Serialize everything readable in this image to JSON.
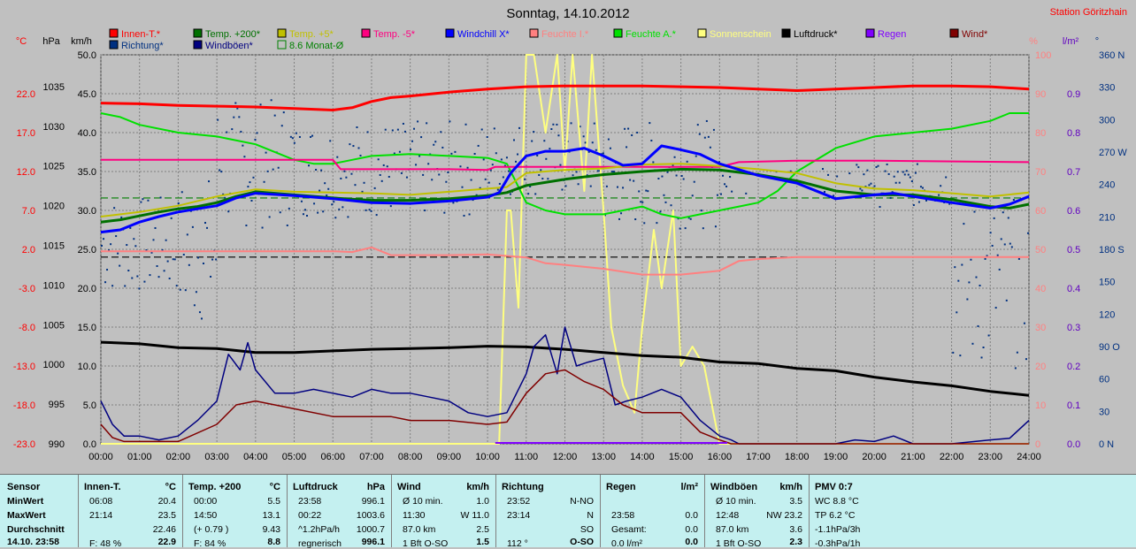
{
  "title": "Sonntag, 14.10.2012",
  "station": "Station Göritzhain",
  "colors": {
    "innen": "#ff0000",
    "temp200": "#007000",
    "temp5": "#c0c000",
    "temp_5": "#ff0080",
    "windchill": "#0000ff",
    "feuchte_i": "#ff8080",
    "feuchte_a": "#00e000",
    "sonne": "#ffff80",
    "luftdruck": "#000000",
    "regen": "#8000ff",
    "wind": "#800000",
    "richtung": "#003080",
    "windboen": "#000080",
    "monat": "#008000",
    "plot_bg": "#c0c0c0",
    "grid": "#808080",
    "panel": "#c4f0f0"
  },
  "legend": [
    {
      "label": "Innen-T.*",
      "color": "#ff0000"
    },
    {
      "label": "Temp. +200*",
      "color": "#007000"
    },
    {
      "label": "Temp. +5*",
      "color": "#c0c000"
    },
    {
      "label": "Temp. -5*",
      "color": "#ff0080"
    },
    {
      "label": "Windchill X*",
      "color": "#0000ff"
    },
    {
      "label": "Feuchte I.*",
      "color": "#ff8080"
    },
    {
      "label": "Feuchte A.*",
      "color": "#00e000"
    },
    {
      "label": "Sonnenschein",
      "color": "#ffff80"
    },
    {
      "label": "Luftdruck*",
      "color": "#000000"
    },
    {
      "label": "Regen",
      "color": "#8000ff"
    },
    {
      "label": "Wind*",
      "color": "#800000"
    },
    {
      "label": "Richtung*",
      "color": "#003080"
    },
    {
      "label": "Windböen*",
      "color": "#000080"
    },
    {
      "label": "8.6 Monat-Ø",
      "color": "#008000",
      "hollow": true
    }
  ],
  "chart_data": {
    "type": "line",
    "title": "Sonntag, 14.10.2012",
    "x_range": [
      0,
      24
    ],
    "x_ticks": [
      "00:00",
      "01:00",
      "02:00",
      "03:00",
      "04:00",
      "05:00",
      "06:00",
      "07:00",
      "08:00",
      "09:00",
      "10:00",
      "11:00",
      "12:00",
      "13:00",
      "14:00",
      "15:00",
      "16:00",
      "17:00",
      "18:00",
      "19:00",
      "20:00",
      "21:00",
      "22:00",
      "23:00",
      "24:00"
    ],
    "axes": {
      "temp": {
        "label": "°C",
        "range": [
          -23,
          27
        ],
        "ticks": [
          "22.0",
          "17.0",
          "12.0",
          "7.0",
          "2.0",
          "-3.0",
          "-8.0",
          "-13.0",
          "-18.0",
          "-23.0"
        ],
        "tick_values": [
          22,
          17,
          12,
          7,
          2,
          -3,
          -8,
          -13,
          -18,
          -23
        ]
      },
      "pressure": {
        "label": "hPa",
        "range": [
          990,
          1039
        ],
        "ticks": [
          "1035",
          "1030",
          "1025",
          "1020",
          "1015",
          "1010",
          "1005",
          "1000",
          "995",
          "990"
        ],
        "tick_values": [
          1035,
          1030,
          1025,
          1020,
          1015,
          1010,
          1005,
          1000,
          995,
          990
        ]
      },
      "wind": {
        "label": "km/h",
        "range": [
          0,
          50
        ],
        "ticks": [
          "50.0",
          "45.0",
          "40.0",
          "35.0",
          "30.0",
          "25.0",
          "20.0",
          "15.0",
          "10.0",
          "5.0",
          "0.0"
        ],
        "tick_values": [
          50,
          45,
          40,
          35,
          30,
          25,
          20,
          15,
          10,
          5,
          0
        ]
      },
      "humidity": {
        "label": "%",
        "range": [
          0,
          100
        ],
        "ticks": [
          "100",
          "90",
          "80",
          "70",
          "60",
          "50",
          "40",
          "30",
          "20",
          "10",
          "0"
        ],
        "tick_values": [
          100,
          90,
          80,
          70,
          60,
          50,
          40,
          30,
          20,
          10,
          0
        ]
      },
      "rain": {
        "label": "l/m²",
        "range": [
          0,
          1.0
        ],
        "ticks": [
          "0.9",
          "0.8",
          "0.7",
          "0.6",
          "0.5",
          "0.4",
          "0.3",
          "0.2",
          "0.1",
          "0.0"
        ],
        "tick_values": [
          0.9,
          0.8,
          0.7,
          0.6,
          0.5,
          0.4,
          0.3,
          0.2,
          0.1,
          0.0
        ]
      },
      "direction": {
        "label": "°",
        "range": [
          0,
          360
        ],
        "ticks": [
          "360 N",
          "330",
          "300",
          "270 W",
          "240",
          "210",
          "180 S",
          "150",
          "120",
          "90 O",
          "60",
          "30",
          "0 N"
        ],
        "tick_values": [
          360,
          330,
          300,
          270,
          240,
          210,
          180,
          150,
          120,
          90,
          60,
          30,
          0
        ]
      }
    },
    "grid": true,
    "reference_lines": [
      {
        "name": "8.6 Monat-Ø",
        "axis": "temp",
        "value": 8.6,
        "style": "dashed",
        "color": "#008000"
      },
      {
        "axis": "temp",
        "value": 1.0,
        "style": "dashed",
        "color": "#000000"
      }
    ],
    "series": [
      {
        "name": "Innen-T.*",
        "axis": "temp",
        "color": "#ff0000",
        "width": 3,
        "x": [
          0,
          1,
          2,
          3,
          4,
          5,
          6,
          6.5,
          7,
          7.5,
          8,
          9,
          10,
          11,
          12,
          13,
          14,
          15,
          16,
          17,
          18,
          19,
          20,
          21,
          22,
          23,
          24
        ],
        "y": [
          20.8,
          20.7,
          20.5,
          20.4,
          20.3,
          20.1,
          19.9,
          20.2,
          21.0,
          21.5,
          21.7,
          22.2,
          22.6,
          22.9,
          23.0,
          23.0,
          23.0,
          22.9,
          22.8,
          22.6,
          22.4,
          22.6,
          22.8,
          23.0,
          23.0,
          22.9,
          22.6
        ]
      },
      {
        "name": "Temp. +200*",
        "axis": "temp",
        "color": "#007000",
        "width": 3,
        "x": [
          0,
          0.5,
          1,
          1.5,
          2,
          2.5,
          3,
          3.5,
          4,
          5,
          6,
          7,
          8,
          9,
          10,
          10.5,
          11,
          12,
          13,
          14,
          15,
          16,
          17,
          18,
          19,
          20,
          21,
          22,
          23,
          23.5,
          24
        ],
        "y": [
          5.5,
          5.8,
          6.3,
          6.8,
          7.2,
          7.5,
          8.0,
          8.8,
          9.4,
          9.0,
          8.6,
          8.3,
          8.3,
          8.5,
          8.9,
          9.3,
          10.2,
          11.0,
          11.6,
          12.0,
          12.3,
          12.2,
          11.6,
          10.8,
          9.5,
          9.0,
          9.0,
          8.4,
          7.5,
          7.3,
          7.8
        ]
      },
      {
        "name": "Temp. +5*",
        "axis": "temp",
        "color": "#c0c000",
        "width": 2,
        "x": [
          0,
          1,
          2,
          3,
          4,
          5,
          6,
          7,
          8,
          9,
          10,
          10.5,
          11,
          12,
          13,
          14,
          15,
          16,
          17,
          18,
          19,
          20,
          21,
          22,
          23,
          24
        ],
        "y": [
          6.2,
          6.8,
          7.6,
          8.8,
          9.7,
          9.4,
          9.3,
          9.2,
          9.0,
          9.4,
          9.8,
          10.0,
          11.8,
          12.2,
          12.4,
          12.9,
          13.0,
          12.7,
          12.3,
          11.8,
          10.5,
          9.8,
          9.6,
          9.2,
          8.8,
          9.3
        ]
      },
      {
        "name": "Temp. -5*",
        "axis": "temp",
        "color": "#ff0080",
        "width": 2,
        "x": [
          0,
          6,
          6.2,
          9,
          10,
          10.2,
          15,
          16,
          16.5,
          18,
          20,
          24
        ],
        "y": [
          13.5,
          13.5,
          12.3,
          12.3,
          12.2,
          12.6,
          12.6,
          12.6,
          13.2,
          13.4,
          13.4,
          13.2
        ]
      },
      {
        "name": "Windchill X*",
        "axis": "temp",
        "color": "#0000ff",
        "width": 3,
        "x": [
          0,
          0.5,
          1,
          1.5,
          2,
          2.5,
          3,
          3.5,
          4,
          5,
          6,
          7,
          8,
          9,
          10,
          10.3,
          10.6,
          11,
          11.5,
          12,
          12.5,
          13,
          13.5,
          14,
          14.5,
          15,
          15.5,
          16,
          17,
          18,
          19,
          20,
          20.5,
          21,
          22,
          23,
          23.5,
          24
        ],
        "y": [
          4.2,
          4.5,
          5.5,
          6.2,
          6.8,
          7.2,
          7.6,
          8.6,
          9.2,
          8.9,
          8.5,
          8.0,
          7.9,
          8.2,
          8.7,
          9.3,
          11.8,
          14.0,
          14.6,
          14.6,
          15.0,
          14.0,
          12.8,
          13.0,
          15.3,
          14.8,
          14.2,
          13.0,
          11.5,
          10.5,
          8.5,
          9.0,
          9.2,
          8.8,
          8.0,
          7.3,
          7.8,
          8.8
        ]
      },
      {
        "name": "Feuchte A.*",
        "axis": "humidity",
        "color": "#00e000",
        "width": 2,
        "x": [
          0,
          0.5,
          1,
          2,
          3,
          4,
          5,
          5.5,
          6,
          6.5,
          7,
          8,
          9,
          10,
          10.5,
          11,
          11.5,
          12,
          13,
          14,
          14.5,
          15,
          15.5,
          16,
          16.5,
          17,
          17.5,
          18,
          19,
          20,
          21,
          22,
          23,
          23.5,
          24
        ],
        "y": [
          85,
          84,
          82,
          80,
          79,
          77,
          73,
          72,
          72,
          73,
          74,
          74.5,
          74,
          73.5,
          72,
          62,
          60,
          59,
          59,
          61,
          59,
          58,
          59,
          60,
          61,
          62,
          65,
          70,
          76,
          79,
          80,
          81,
          83,
          85,
          85
        ]
      },
      {
        "name": "Feuchte I.*",
        "axis": "humidity",
        "color": "#ff8080",
        "width": 2,
        "x": [
          0,
          6,
          6.5,
          7,
          7.5,
          9,
          10,
          11,
          11.5,
          12,
          13,
          14,
          15,
          16,
          16.5,
          17,
          18,
          24
        ],
        "y": [
          49.5,
          49.5,
          49.3,
          50.5,
          48.5,
          48.5,
          48.7,
          47.9,
          46.4,
          46.0,
          45.0,
          43.5,
          43.5,
          44.5,
          47.0,
          47.5,
          48.0,
          48.0
        ]
      },
      {
        "name": "Sonnenschein",
        "axis": "humidity",
        "color": "#ffff80",
        "width": 2,
        "x": [
          0,
          10.3,
          10.5,
          10.6,
          10.8,
          11.0,
          11.2,
          11.5,
          11.8,
          12.0,
          12.2,
          12.5,
          12.7,
          13.0,
          13.2,
          13.5,
          13.8,
          14.0,
          14.3,
          14.5,
          14.8,
          15.0,
          15.3,
          15.6,
          16.0,
          16.2,
          24
        ],
        "y": [
          0,
          0,
          60,
          60,
          35,
          100,
          100,
          80,
          100,
          70,
          100,
          65,
          100,
          60,
          30,
          15,
          8,
          30,
          55,
          40,
          60,
          20,
          25,
          20,
          0,
          0,
          0
        ]
      },
      {
        "name": "Luftdruck*",
        "axis": "pressure",
        "color": "#000000",
        "width": 3,
        "x": [
          0,
          1,
          2,
          3,
          4,
          5,
          6,
          7,
          8,
          9,
          10,
          11,
          12,
          13,
          14,
          15,
          16,
          17,
          18,
          19,
          20,
          21,
          22,
          23,
          24
        ],
        "y": [
          1002.8,
          1002.6,
          1002.1,
          1002.0,
          1001.5,
          1001.5,
          1001.7,
          1001.9,
          1002.0,
          1002.1,
          1002.3,
          1002.2,
          1001.9,
          1001.5,
          1001.1,
          1000.9,
          1000.3,
          1000.1,
          999.5,
          999.2,
          998.4,
          997.8,
          997.3,
          996.6,
          996.1
        ]
      },
      {
        "name": "Windböen*",
        "axis": "wind",
        "color": "#000080",
        "width": 1.5,
        "x": [
          0,
          0.3,
          0.6,
          1,
          1.5,
          2,
          2.5,
          3,
          3.3,
          3.6,
          3.8,
          4,
          4.5,
          5,
          5.5,
          6,
          6.5,
          7,
          7.5,
          8,
          8.5,
          9,
          9.5,
          10,
          10.5,
          11,
          11.2,
          11.5,
          11.8,
          12,
          12.3,
          12.6,
          13,
          13.3,
          13.6,
          14,
          14.5,
          15,
          15.5,
          16,
          16.3,
          16.5,
          17,
          19,
          19.5,
          20,
          20.5,
          21,
          22,
          23,
          23.5,
          24
        ],
        "y": [
          5.5,
          2.5,
          1.0,
          1.0,
          0.5,
          1.0,
          3.0,
          5.5,
          11.5,
          9.5,
          13.0,
          9.5,
          6.5,
          6.5,
          7.0,
          6.5,
          6.0,
          7.0,
          6.5,
          6.5,
          6.0,
          5.5,
          4.0,
          3.5,
          4.0,
          9.0,
          12.5,
          14.0,
          9.0,
          15.0,
          10.0,
          10.5,
          11.0,
          5.0,
          5.5,
          6.0,
          7.0,
          6.0,
          3.0,
          1.0,
          0.5,
          0,
          0,
          0,
          0.5,
          0.3,
          1.0,
          0,
          0,
          0.5,
          0.7,
          3.0
        ]
      },
      {
        "name": "Wind*",
        "axis": "wind",
        "color": "#800000",
        "width": 1.5,
        "x": [
          0,
          0.3,
          0.6,
          1,
          2,
          3,
          3.5,
          4,
          5,
          6,
          7,
          7.5,
          8,
          9,
          10,
          10.5,
          11,
          11.5,
          12,
          12.5,
          13,
          13.5,
          14,
          14.5,
          15,
          15.5,
          16,
          16.3,
          16.5,
          24
        ],
        "y": [
          2.5,
          0.8,
          0.3,
          0.3,
          0.3,
          2.5,
          5.0,
          5.5,
          4.5,
          3.5,
          3.5,
          3.5,
          3.0,
          3.0,
          2.5,
          2.8,
          6.5,
          9.0,
          9.5,
          8.0,
          7.0,
          5.0,
          4.0,
          4.0,
          4.0,
          1.5,
          0.5,
          0,
          0,
          0
        ]
      }
    ],
    "scatter_series": {
      "name": "Richtung*",
      "axis": "direction",
      "color": "#003080"
    }
  },
  "panel": {
    "sensor": {
      "header": "Sensor",
      "rows": [
        "MinWert",
        "MaxWert",
        "Durchschnitt",
        "14.10. 23:58"
      ]
    },
    "innen": {
      "header": "Innen-T.",
      "unit": "°C",
      "rows": [
        [
          "06:08",
          "20.4"
        ],
        [
          "21:14",
          "23.5"
        ],
        [
          "",
          "22.46"
        ],
        [
          "F: 48 %",
          "22.9"
        ]
      ]
    },
    "temp200": {
      "header": "Temp. +200",
      "unit": "°C",
      "rows": [
        [
          "00:00",
          "5.5"
        ],
        [
          "14:50",
          "13.1"
        ],
        [
          "(+ 0.79 )",
          "9.43"
        ],
        [
          "F: 84 %",
          "8.8"
        ]
      ]
    },
    "luftdruck": {
      "header": "Luftdruck",
      "unit": "hPa",
      "rows": [
        [
          "23:58",
          "996.1"
        ],
        [
          "00:22",
          "1003.6"
        ],
        [
          "^1.2hPa/h",
          "1000.7"
        ],
        [
          "regnerisch",
          "996.1"
        ]
      ]
    },
    "wind": {
      "header": "Wind",
      "unit": "km/h",
      "rows": [
        [
          "Ø 10 min.",
          "1.0"
        ],
        [
          "11:30",
          "W 11.0"
        ],
        [
          "87.0 km",
          "2.5"
        ],
        [
          "1 Bft O-SO",
          "1.5"
        ]
      ]
    },
    "richtung": {
      "header": "Richtung",
      "rows": [
        [
          "23:52",
          "N-NO"
        ],
        [
          "23:14",
          "N"
        ],
        [
          "",
          "SO"
        ],
        [
          "112 °",
          "O-SO"
        ]
      ]
    },
    "regen": {
      "header": "Regen",
      "unit": "l/m²",
      "rows": [
        [
          "",
          ""
        ],
        [
          "23:58",
          "0.0"
        ],
        [
          "Gesamt:",
          "0.0"
        ],
        [
          "0.0 l/m²",
          "0.0"
        ]
      ]
    },
    "windboen": {
      "header": "Windböen",
      "unit": "km/h",
      "rows": [
        [
          "Ø 10 min.",
          "3.5"
        ],
        [
          "12:48",
          "NW 23.2"
        ],
        [
          "87.0 km",
          "3.6"
        ],
        [
          "1 Bft O-SO",
          "2.3"
        ]
      ]
    },
    "pmv": {
      "header": "PMV 0:7",
      "rows": [
        "WC 8.8 °C",
        "TP 6.2 °C",
        "-1.1hPa/3h",
        "-0.3hPa/1h"
      ]
    }
  }
}
